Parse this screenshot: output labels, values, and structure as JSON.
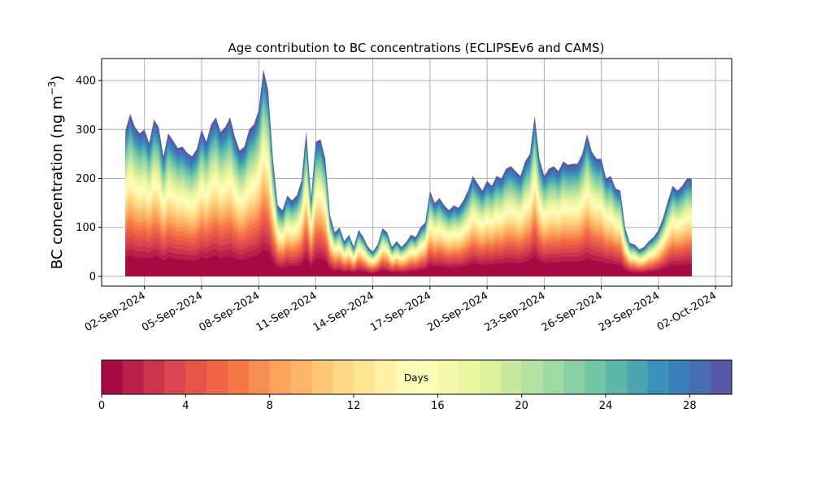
{
  "chart_data": {
    "type": "area",
    "title": "Age contribution to BC concentrations (ECLIPSEv6 and CAMS)",
    "ylabel_main": "BC concentration (ng m",
    "ylabel_sup": "−3",
    "ylabel_close": ")",
    "xlabel": "",
    "ylim": [
      -20,
      445
    ],
    "yticks": [
      0,
      100,
      200,
      300,
      400
    ],
    "xticks": [
      "02-Sep-2024",
      "05-Sep-2024",
      "08-Sep-2024",
      "11-Sep-2024",
      "14-Sep-2024",
      "17-Sep-2024",
      "20-Sep-2024",
      "23-Sep-2024",
      "26-Sep-2024",
      "29-Sep-2024",
      "02-Oct-2024"
    ],
    "grid": true,
    "colorbar": {
      "label": "Days",
      "ticks": [
        "0",
        "4",
        "8",
        "12",
        "16",
        "20",
        "24",
        "28"
      ],
      "range": [
        0,
        30
      ],
      "bins": 30,
      "colormap": "Spectral"
    },
    "total": [
      [
        "2024-09-01 00:00",
        298
      ],
      [
        "2024-09-01 06:00",
        332
      ],
      [
        "2024-09-01 12:00",
        305
      ],
      [
        "2024-09-01 18:00",
        292
      ],
      [
        "2024-09-02 00:00",
        300
      ],
      [
        "2024-09-02 06:00",
        272
      ],
      [
        "2024-09-02 12:00",
        320
      ],
      [
        "2024-09-02 18:00",
        305
      ],
      [
        "2024-09-03 00:00",
        245
      ],
      [
        "2024-09-03 06:00",
        292
      ],
      [
        "2024-09-03 12:00",
        278
      ],
      [
        "2024-09-03 18:00",
        262
      ],
      [
        "2024-09-04 00:00",
        265
      ],
      [
        "2024-09-04 06:00",
        252
      ],
      [
        "2024-09-04 12:00",
        245
      ],
      [
        "2024-09-04 18:00",
        260
      ],
      [
        "2024-09-05 00:00",
        300
      ],
      [
        "2024-09-05 06:00",
        275
      ],
      [
        "2024-09-05 12:00",
        310
      ],
      [
        "2024-09-05 18:00",
        325
      ],
      [
        "2024-09-06 00:00",
        295
      ],
      [
        "2024-09-06 06:00",
        305
      ],
      [
        "2024-09-06 12:00",
        325
      ],
      [
        "2024-09-06 18:00",
        285
      ],
      [
        "2024-09-07 00:00",
        257
      ],
      [
        "2024-09-07 06:00",
        265
      ],
      [
        "2024-09-07 12:00",
        300
      ],
      [
        "2024-09-07 18:00",
        310
      ],
      [
        "2024-09-08 00:00",
        340
      ],
      [
        "2024-09-08 06:00",
        423
      ],
      [
        "2024-09-08 12:00",
        380
      ],
      [
        "2024-09-08 18:00",
        240
      ],
      [
        "2024-09-09 00:00",
        145
      ],
      [
        "2024-09-09 06:00",
        135
      ],
      [
        "2024-09-09 12:00",
        165
      ],
      [
        "2024-09-09 18:00",
        155
      ],
      [
        "2024-09-10 00:00",
        165
      ],
      [
        "2024-09-10 06:00",
        195
      ],
      [
        "2024-09-10 12:00",
        297
      ],
      [
        "2024-09-10 18:00",
        160
      ],
      [
        "2024-09-11 00:00",
        275
      ],
      [
        "2024-09-11 06:00",
        280
      ],
      [
        "2024-09-11 12:00",
        240
      ],
      [
        "2024-09-11 18:00",
        125
      ],
      [
        "2024-09-12 00:00",
        90
      ],
      [
        "2024-09-12 06:00",
        100
      ],
      [
        "2024-09-12 12:00",
        72
      ],
      [
        "2024-09-12 18:00",
        85
      ],
      [
        "2024-09-13 00:00",
        60
      ],
      [
        "2024-09-13 06:00",
        95
      ],
      [
        "2024-09-13 12:00",
        80
      ],
      [
        "2024-09-13 18:00",
        60
      ],
      [
        "2024-09-14 00:00",
        50
      ],
      [
        "2024-09-14 06:00",
        65
      ],
      [
        "2024-09-14 12:00",
        98
      ],
      [
        "2024-09-14 18:00",
        90
      ],
      [
        "2024-09-15 00:00",
        60
      ],
      [
        "2024-09-15 06:00",
        72
      ],
      [
        "2024-09-15 12:00",
        60
      ],
      [
        "2024-09-15 18:00",
        70
      ],
      [
        "2024-09-16 00:00",
        85
      ],
      [
        "2024-09-16 06:00",
        80
      ],
      [
        "2024-09-16 12:00",
        100
      ],
      [
        "2024-09-16 18:00",
        110
      ],
      [
        "2024-09-17 00:00",
        175
      ],
      [
        "2024-09-17 06:00",
        150
      ],
      [
        "2024-09-17 12:00",
        160
      ],
      [
        "2024-09-17 18:00",
        145
      ],
      [
        "2024-09-18 00:00",
        135
      ],
      [
        "2024-09-18 06:00",
        145
      ],
      [
        "2024-09-18 12:00",
        140
      ],
      [
        "2024-09-18 18:00",
        155
      ],
      [
        "2024-09-19 00:00",
        175
      ],
      [
        "2024-09-19 06:00",
        205
      ],
      [
        "2024-09-19 12:00",
        190
      ],
      [
        "2024-09-19 18:00",
        175
      ],
      [
        "2024-09-20 00:00",
        195
      ],
      [
        "2024-09-20 06:00",
        185
      ],
      [
        "2024-09-20 12:00",
        205
      ],
      [
        "2024-09-20 18:00",
        200
      ],
      [
        "2024-09-21 00:00",
        220
      ],
      [
        "2024-09-21 06:00",
        225
      ],
      [
        "2024-09-21 12:00",
        215
      ],
      [
        "2024-09-21 18:00",
        205
      ],
      [
        "2024-09-22 00:00",
        235
      ],
      [
        "2024-09-22 06:00",
        250
      ],
      [
        "2024-09-22 12:00",
        328
      ],
      [
        "2024-09-22 18:00",
        240
      ],
      [
        "2024-09-23 00:00",
        205
      ],
      [
        "2024-09-23 06:00",
        220
      ],
      [
        "2024-09-23 12:00",
        225
      ],
      [
        "2024-09-23 18:00",
        215
      ],
      [
        "2024-09-24 00:00",
        235
      ],
      [
        "2024-09-24 06:00",
        228
      ],
      [
        "2024-09-24 12:00",
        230
      ],
      [
        "2024-09-24 18:00",
        230
      ],
      [
        "2024-09-25 00:00",
        250
      ],
      [
        "2024-09-25 06:00",
        290
      ],
      [
        "2024-09-25 12:00",
        255
      ],
      [
        "2024-09-25 18:00",
        240
      ],
      [
        "2024-09-26 00:00",
        240
      ],
      [
        "2024-09-26 06:00",
        200
      ],
      [
        "2024-09-26 12:00",
        205
      ],
      [
        "2024-09-26 18:00",
        180
      ],
      [
        "2024-09-27 00:00",
        175
      ],
      [
        "2024-09-27 06:00",
        100
      ],
      [
        "2024-09-27 12:00",
        68
      ],
      [
        "2024-09-27 18:00",
        65
      ],
      [
        "2024-09-28 00:00",
        55
      ],
      [
        "2024-09-28 06:00",
        60
      ],
      [
        "2024-09-28 12:00",
        72
      ],
      [
        "2024-09-28 18:00",
        80
      ],
      [
        "2024-09-29 00:00",
        95
      ],
      [
        "2024-09-29 06:00",
        120
      ],
      [
        "2024-09-29 12:00",
        155
      ],
      [
        "2024-09-29 18:00",
        185
      ],
      [
        "2024-09-30 00:00",
        175
      ],
      [
        "2024-09-30 06:00",
        185
      ],
      [
        "2024-09-30 12:00",
        200
      ],
      [
        "2024-09-30 18:00",
        200
      ]
    ]
  }
}
